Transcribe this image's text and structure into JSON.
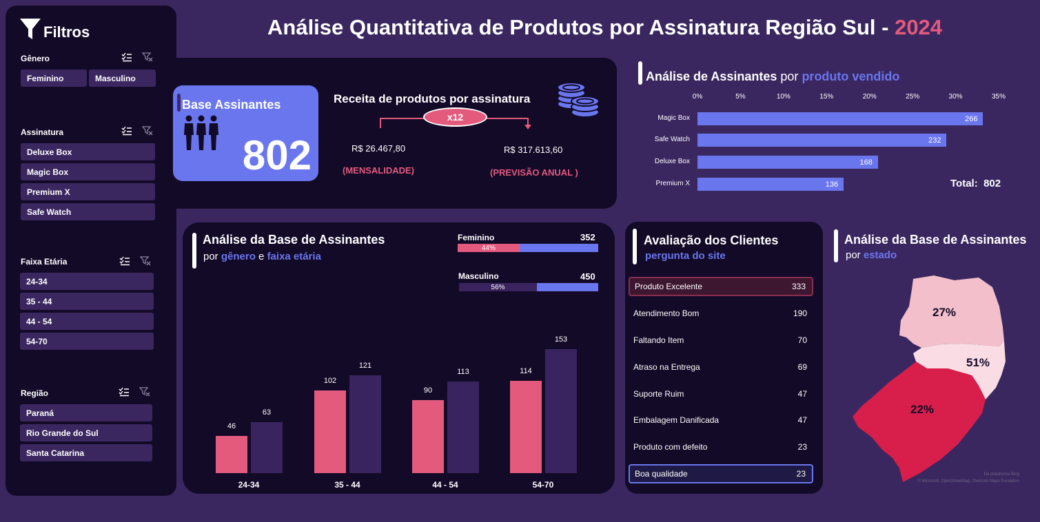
{
  "header": {
    "title_main": "Análise Quantitativa de Produtos por Assinatura Região Sul - ",
    "title_year": "2024"
  },
  "filters": {
    "title": "Filtros",
    "genero": {
      "label": "Gênero",
      "options": [
        "Feminino",
        "Masculino"
      ]
    },
    "assinatura": {
      "label": "Assinatura",
      "options": [
        "Deluxe Box",
        "Magic Box",
        "Premium X",
        "Safe Watch"
      ]
    },
    "faixa": {
      "label": "Faixa Etária",
      "options": [
        "24-34",
        "35 - 44",
        "44 - 54",
        "54-70"
      ]
    },
    "regiao": {
      "label": "Região",
      "options": [
        "Paraná",
        "Rio Grande do Sul",
        "Santa Catarina"
      ]
    }
  },
  "kpi": {
    "base_label": "Base Assinantes",
    "base_value": "802",
    "receita_title": "Receita de produtos por assinatura",
    "multiplier": "x12",
    "mensal_value": "R$ 26.467,80",
    "mensal_label": "(MENSALIDADE)",
    "anual_value": "R$ 317.613,60",
    "anual_label": "(PREVISÃO ANUAL )"
  },
  "produto": {
    "title_a": "Análise de Assinantes",
    "title_b": " por ",
    "title_c": "produto vendido",
    "total_label": "Total:",
    "total_value": "802"
  },
  "base_chart": {
    "title": "Análise da Base de Assinantes",
    "sub_a": "por ",
    "sub_b": "gênero",
    "sub_c": " e ",
    "sub_d": "faixa etária",
    "feminino": {
      "label": "Feminino",
      "count": "352",
      "pct_label": "44%",
      "pct": 0.44
    },
    "masculino": {
      "label": "Masculino",
      "count": "450",
      "pct_label": "56%",
      "pct": 0.56
    }
  },
  "avaliacao": {
    "title": "Avaliação dos Clientes",
    "subtitle": "pergunta do site",
    "rows": [
      {
        "label": "Produto Excelente",
        "value": "333"
      },
      {
        "label": "Atendimento Bom",
        "value": "190"
      },
      {
        "label": "Faltando Item",
        "value": "70"
      },
      {
        "label": "Atraso na Entrega",
        "value": "69"
      },
      {
        "label": "Suporte Ruim",
        "value": "47"
      },
      {
        "label": "Embalagem Danificada",
        "value": "47"
      },
      {
        "label": "Produto com defeito",
        "value": "23"
      },
      {
        "label": "Boa qualidade",
        "value": "23"
      }
    ]
  },
  "mapa": {
    "title": "Análise da Base de Assinantes",
    "sub_a": "por ",
    "sub_b": "estado",
    "pct_pr": "27%",
    "pct_sc": "51%",
    "pct_rs": "22%",
    "credit1": "Da plataforma Bing",
    "credit2": "© Microsoft, OpenStreetMap, Overture Maps Fundation"
  },
  "chart_data": [
    {
      "type": "bar",
      "orientation": "horizontal",
      "categories": [
        "Magic Box",
        "Safe Watch",
        "Deluxe Box",
        "Premium X"
      ],
      "values": [
        266,
        232,
        168,
        136
      ],
      "x_ticks": [
        "0%",
        "5%",
        "10%",
        "15%",
        "20%",
        "25%",
        "30%",
        "35%"
      ],
      "xlim": [
        0,
        0.35
      ]
    },
    {
      "type": "bar",
      "categories": [
        "24-34",
        "35 - 44",
        "44 - 54",
        "54-70"
      ],
      "series": [
        {
          "values": [
            46,
            102,
            90,
            114
          ],
          "color": "#e45a7d"
        },
        {
          "values": [
            63,
            121,
            113,
            153
          ],
          "color": "#39245f"
        }
      ],
      "ylim": [
        0,
        160
      ]
    }
  ],
  "colors": {
    "background": "#3a2760",
    "panel": "#130a28",
    "accent_blue": "#6a76ee",
    "accent_pink": "#e45a7d",
    "map_pr": "#f2bfcb",
    "map_sc": "#fadde4",
    "map_rs": "#d81e4a"
  }
}
